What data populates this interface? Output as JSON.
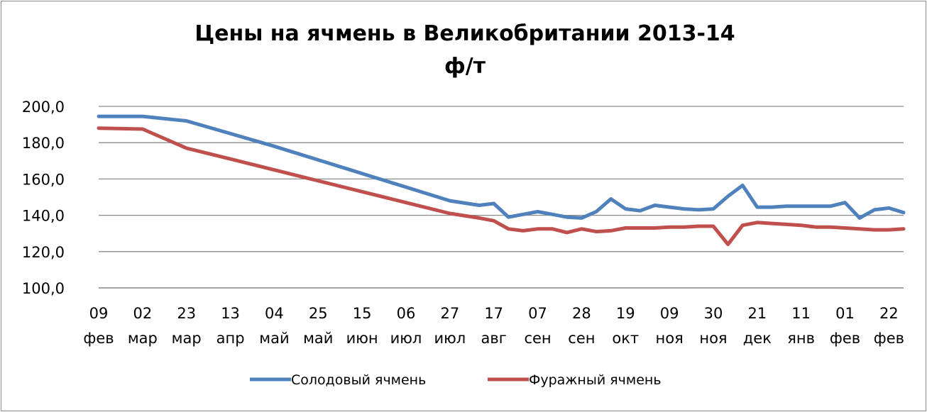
{
  "chart_data": {
    "type": "line",
    "title": "Цены на ячмень в Великобритании 2013-14",
    "subtitle": "ф/т",
    "xlabel": "",
    "ylabel": "",
    "ylim": [
      100,
      200
    ],
    "y_ticks": [
      "100,0",
      "120,0",
      "140,0",
      "160,0",
      "180,0",
      "200,0"
    ],
    "grid": true,
    "legend_position": "bottom",
    "x_tick_labels": [
      {
        "day": "09",
        "month": "фев"
      },
      {
        "day": "02",
        "month": "мар"
      },
      {
        "day": "23",
        "month": "мар"
      },
      {
        "day": "13",
        "month": "апр"
      },
      {
        "day": "04",
        "month": "май"
      },
      {
        "day": "25",
        "month": "май"
      },
      {
        "day": "15",
        "month": "июн"
      },
      {
        "day": "06",
        "month": "июл"
      },
      {
        "day": "27",
        "month": "июл"
      },
      {
        "day": "17",
        "month": "авг"
      },
      {
        "day": "07",
        "month": "сен"
      },
      {
        "day": "28",
        "month": "сен"
      },
      {
        "day": "19",
        "month": "окт"
      },
      {
        "day": "09",
        "month": "ноя"
      },
      {
        "day": "30",
        "month": "ноя"
      },
      {
        "day": "21",
        "month": "дек"
      },
      {
        "day": "11",
        "month": "янв"
      },
      {
        "day": "01",
        "month": "фев"
      },
      {
        "day": "22",
        "month": "фев"
      }
    ],
    "x": [
      0,
      3,
      6,
      9,
      12,
      15,
      18,
      21,
      24,
      26,
      27,
      28,
      29,
      30,
      31,
      32,
      33,
      34,
      35,
      36,
      37,
      38,
      39,
      40,
      41,
      42,
      43,
      44,
      45,
      46,
      47,
      48,
      49,
      50,
      51,
      52,
      53,
      54,
      55
    ],
    "series": [
      {
        "name": "Солодовый ячмень",
        "color": "#4f81bd",
        "values": [
          194.5,
          194.5,
          192.0,
          185.0,
          178.0,
          170.5,
          163.0,
          155.5,
          148.0,
          145.5,
          146.5,
          139.0,
          140.5,
          142.0,
          140.5,
          139.0,
          138.5,
          142.0,
          149.0,
          143.5,
          142.5,
          145.5,
          144.5,
          143.5,
          143.0,
          143.5,
          150.5,
          156.5,
          144.5,
          144.5,
          145.0,
          145.0,
          145.0,
          145.0,
          147.0,
          138.5,
          143.0,
          144.0,
          141.5
        ]
      },
      {
        "name": "Фуражный ячмень",
        "color": "#c0504d",
        "values": [
          188.0,
          187.5,
          177.0,
          171.0,
          165.0,
          159.0,
          153.0,
          147.0,
          141.0,
          138.5,
          137.0,
          132.5,
          131.5,
          132.5,
          132.5,
          130.5,
          132.5,
          131.0,
          131.5,
          133.0,
          133.0,
          133.0,
          133.5,
          133.5,
          134.0,
          134.0,
          124.0,
          134.5,
          136.0,
          135.5,
          135.0,
          134.5,
          133.5,
          133.5,
          133.0,
          132.5,
          132.0,
          132.0,
          132.5
        ]
      }
    ]
  }
}
